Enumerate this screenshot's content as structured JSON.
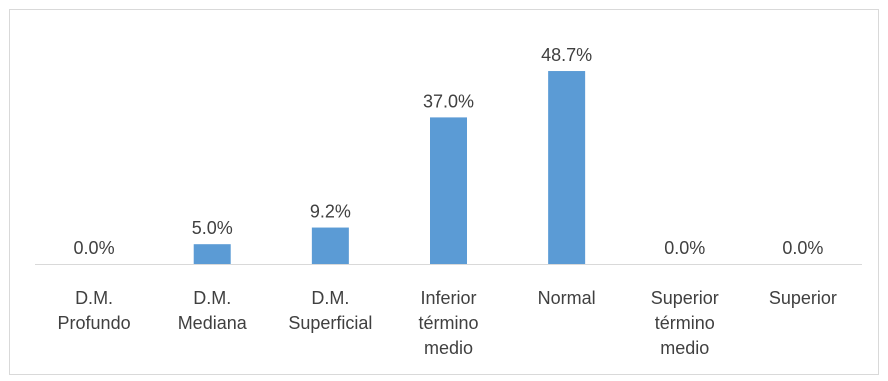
{
  "chart_data": {
    "type": "bar",
    "categories": [
      [
        "D.M.",
        "Profundo"
      ],
      [
        "D.M.",
        "Mediana"
      ],
      [
        "D.M.",
        "Superficial"
      ],
      [
        "Inferior",
        "término",
        "medio"
      ],
      [
        "Normal"
      ],
      [
        "Superior",
        "término",
        "medio"
      ],
      [
        "Superior"
      ]
    ],
    "values": [
      0.0,
      5.0,
      9.2,
      37.0,
      48.7,
      0.0,
      0.0
    ],
    "data_labels": [
      "0.0%",
      "5.0%",
      "9.2%",
      "37.0%",
      "48.7%",
      "0.0%",
      "0.0%"
    ],
    "title": "",
    "xlabel": "",
    "ylabel": "",
    "ylim": [
      0,
      53
    ],
    "grid": false,
    "legend": "none",
    "bar_color": "#5b9bd5",
    "axis_color": "#d9d9d9",
    "text_color": "#404040"
  }
}
